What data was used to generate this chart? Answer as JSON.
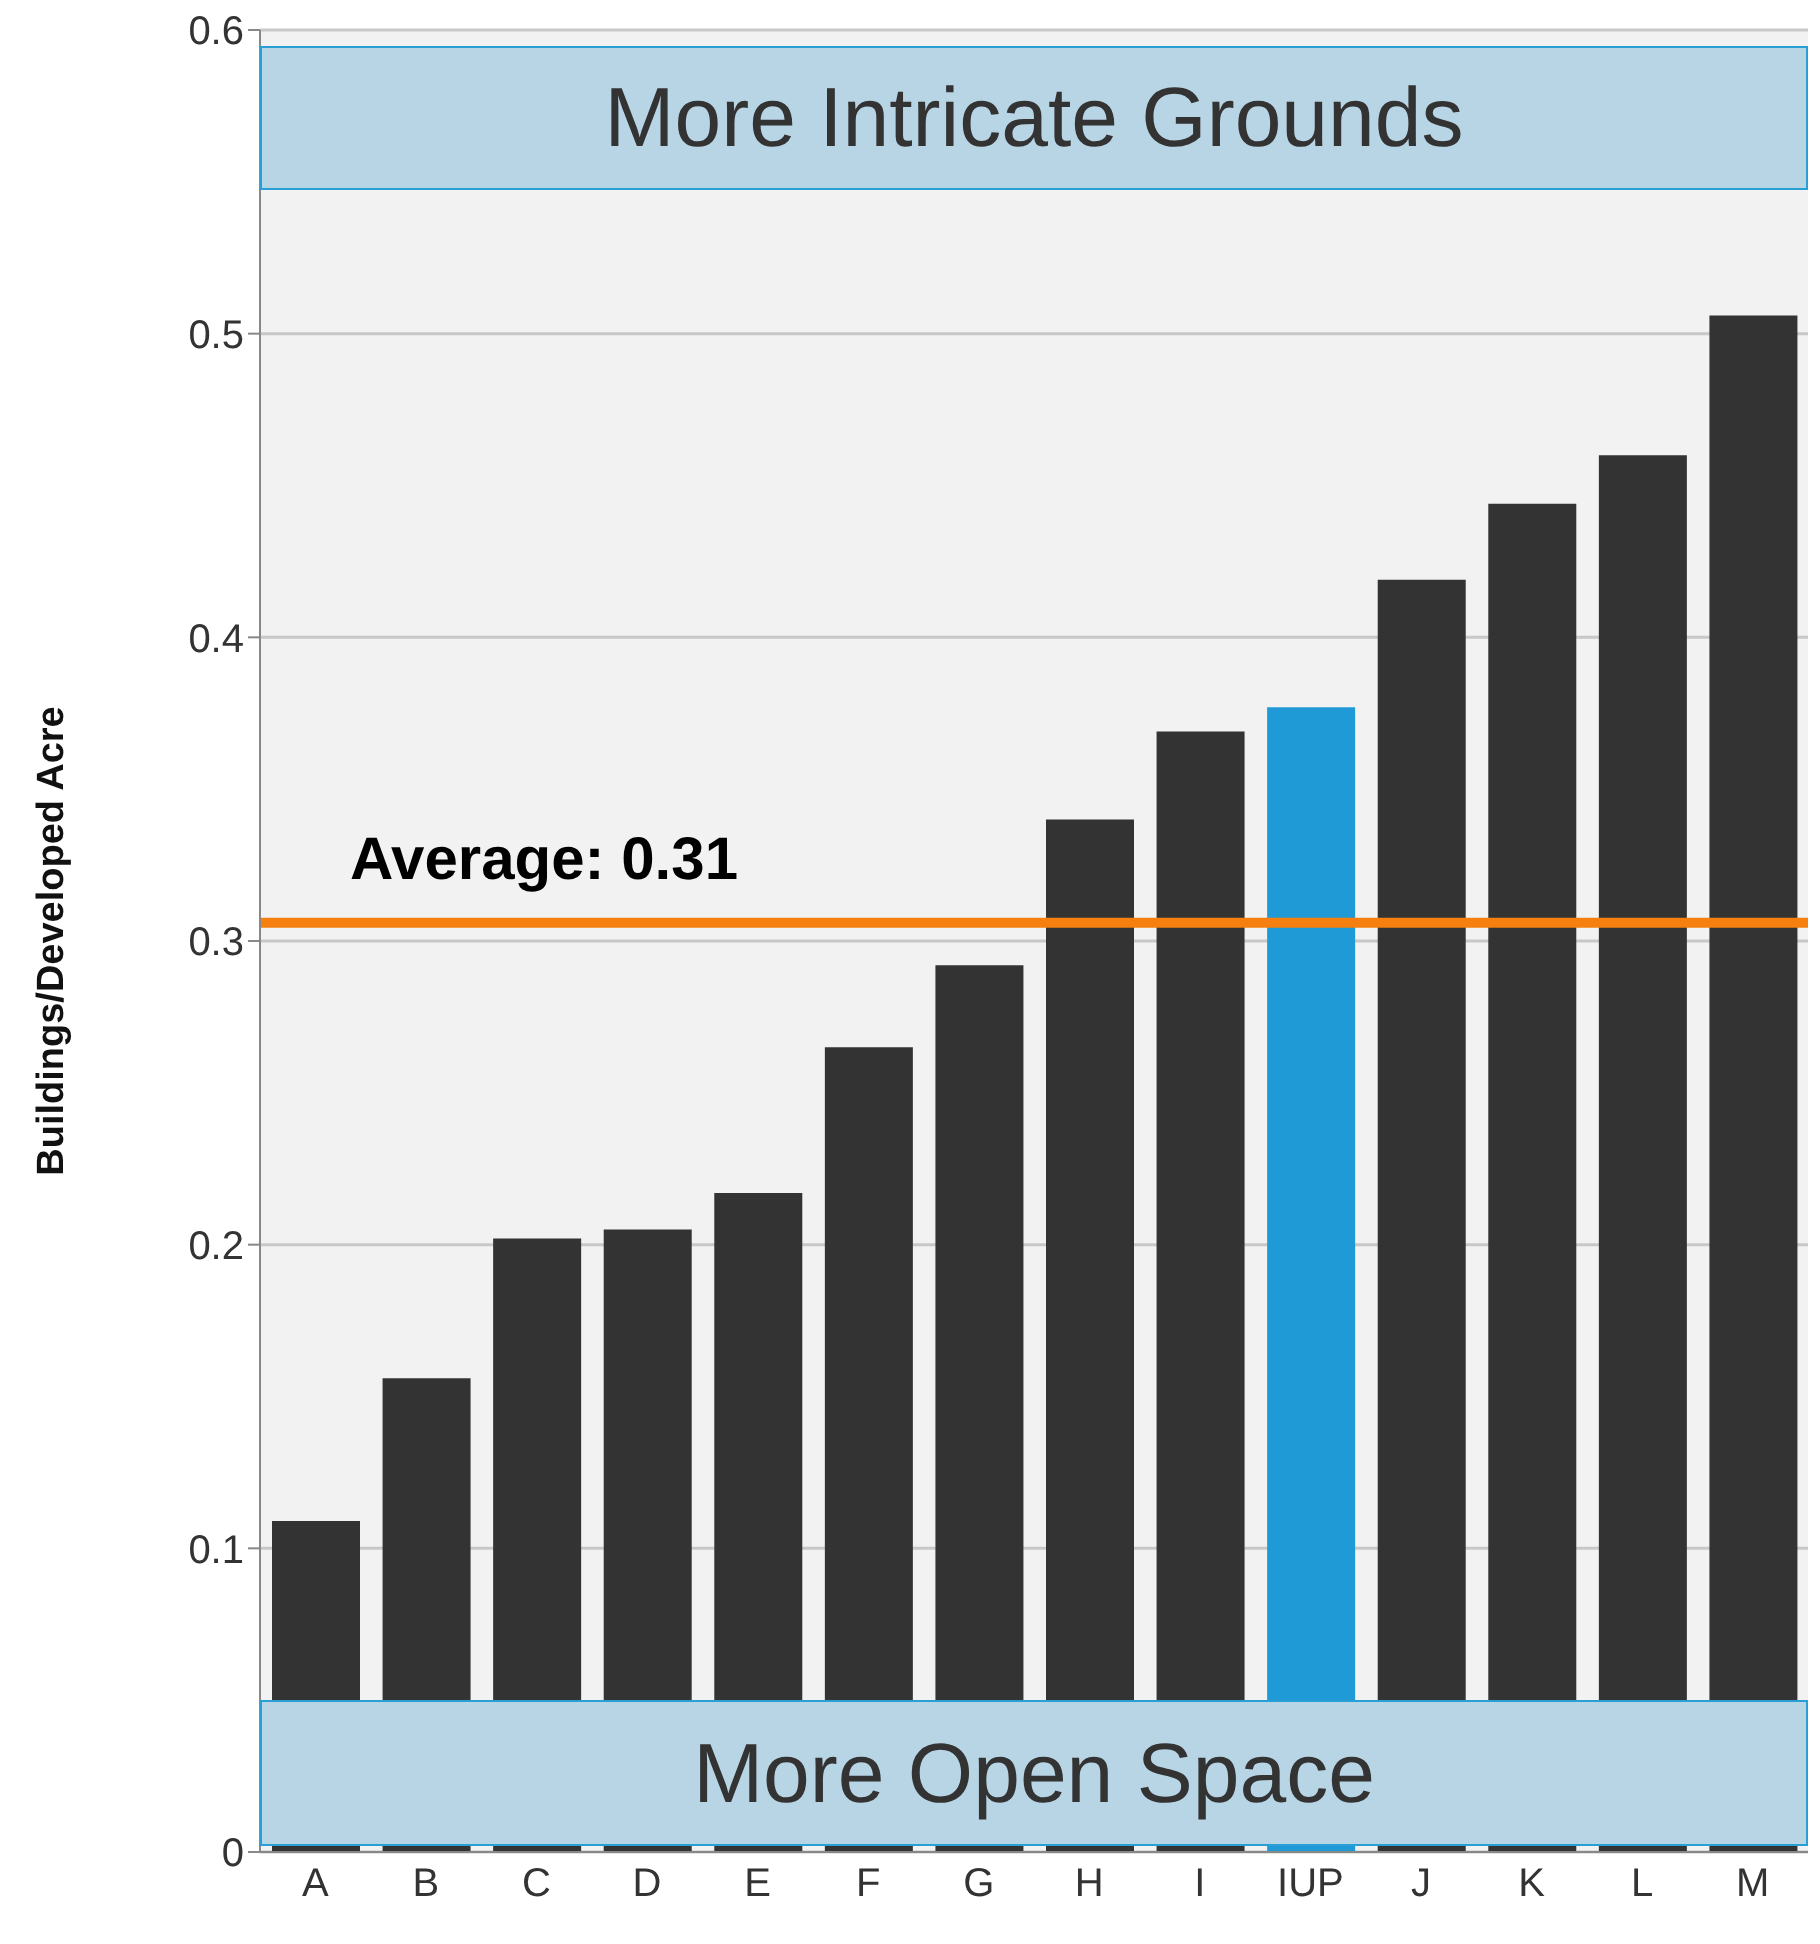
{
  "chart_data": {
    "type": "bar",
    "ylabel": "Buildings/Developed Acre",
    "categories": [
      "A",
      "B",
      "C",
      "D",
      "E",
      "F",
      "G",
      "H",
      "I",
      "IUP",
      "J",
      "K",
      "L",
      "M"
    ],
    "values": [
      0.109,
      0.156,
      0.202,
      0.205,
      0.217,
      0.265,
      0.292,
      0.34,
      0.369,
      0.377,
      0.419,
      0.444,
      0.46,
      0.506
    ],
    "colors": [
      "#333333",
      "#333333",
      "#333333",
      "#333333",
      "#333333",
      "#333333",
      "#333333",
      "#333333",
      "#333333",
      "#1f9ad6",
      "#333333",
      "#333333",
      "#333333",
      "#333333"
    ],
    "ylim": [
      0,
      0.6
    ],
    "yticks": [
      0,
      0.1,
      0.2,
      0.3,
      0.4,
      0.5,
      0.6
    ],
    "grid": "y",
    "ref_lines": [
      {
        "axis": "y",
        "value": 0.306,
        "label": "Average: 0.31",
        "color": "#f57f0f"
      }
    ],
    "bands": [
      {
        "axis": "y",
        "from": 0.547,
        "to": 0.595,
        "label": "More Intricate Grounds",
        "color": "#b8d5e5"
      },
      {
        "axis": "y",
        "from": 0.002,
        "to": 0.05,
        "label": "More Open Space",
        "color": "#b8d5e5"
      }
    ]
  }
}
